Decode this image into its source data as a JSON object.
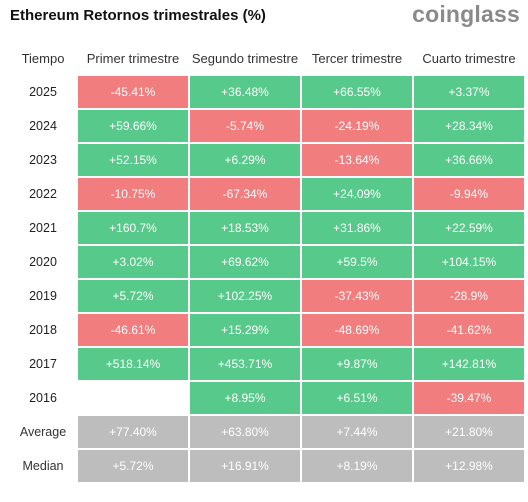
{
  "title": "Ethereum Retornos trimestrales (%)",
  "logo": "coinglass",
  "colors": {
    "positive": "#57c98a",
    "negative": "#f27d7e",
    "summary": "#bdbdbd"
  },
  "columns": [
    "Tiempo",
    "Primer trimestre",
    "Segundo trimestre",
    "Tercer trimestre",
    "Cuarto trimestre"
  ],
  "rows": [
    {
      "year": "2025",
      "values": [
        "-45.41%",
        "+36.48%",
        "+66.55%",
        "+3.37%"
      ]
    },
    {
      "year": "2024",
      "values": [
        "+59.66%",
        "-5.74%",
        "-24.19%",
        "+28.34%"
      ]
    },
    {
      "year": "2023",
      "values": [
        "+52.15%",
        "+6.29%",
        "-13.64%",
        "+36.66%"
      ]
    },
    {
      "year": "2022",
      "values": [
        "-10.75%",
        "-67.34%",
        "+24.09%",
        "-9.94%"
      ]
    },
    {
      "year": "2021",
      "values": [
        "+160.7%",
        "+18.53%",
        "+31.86%",
        "+22.59%"
      ]
    },
    {
      "year": "2020",
      "values": [
        "+3.02%",
        "+69.62%",
        "+59.5%",
        "+104.15%"
      ]
    },
    {
      "year": "2019",
      "values": [
        "+5.72%",
        "+102.25%",
        "-37.43%",
        "-28.9%"
      ]
    },
    {
      "year": "2018",
      "values": [
        "-46.61%",
        "+15.29%",
        "-48.69%",
        "-41.62%"
      ]
    },
    {
      "year": "2017",
      "values": [
        "+518.14%",
        "+453.71%",
        "+9.87%",
        "+142.81%"
      ]
    },
    {
      "year": "2016",
      "values": [
        "",
        "+8.95%",
        "+6.51%",
        "-39.47%"
      ]
    }
  ],
  "summary": [
    {
      "label": "Average",
      "values": [
        "+77.40%",
        "+63.80%",
        "+7.44%",
        "+21.80%"
      ]
    },
    {
      "label": "Median",
      "values": [
        "+5.72%",
        "+16.91%",
        "+8.19%",
        "+12.98%"
      ]
    }
  ]
}
